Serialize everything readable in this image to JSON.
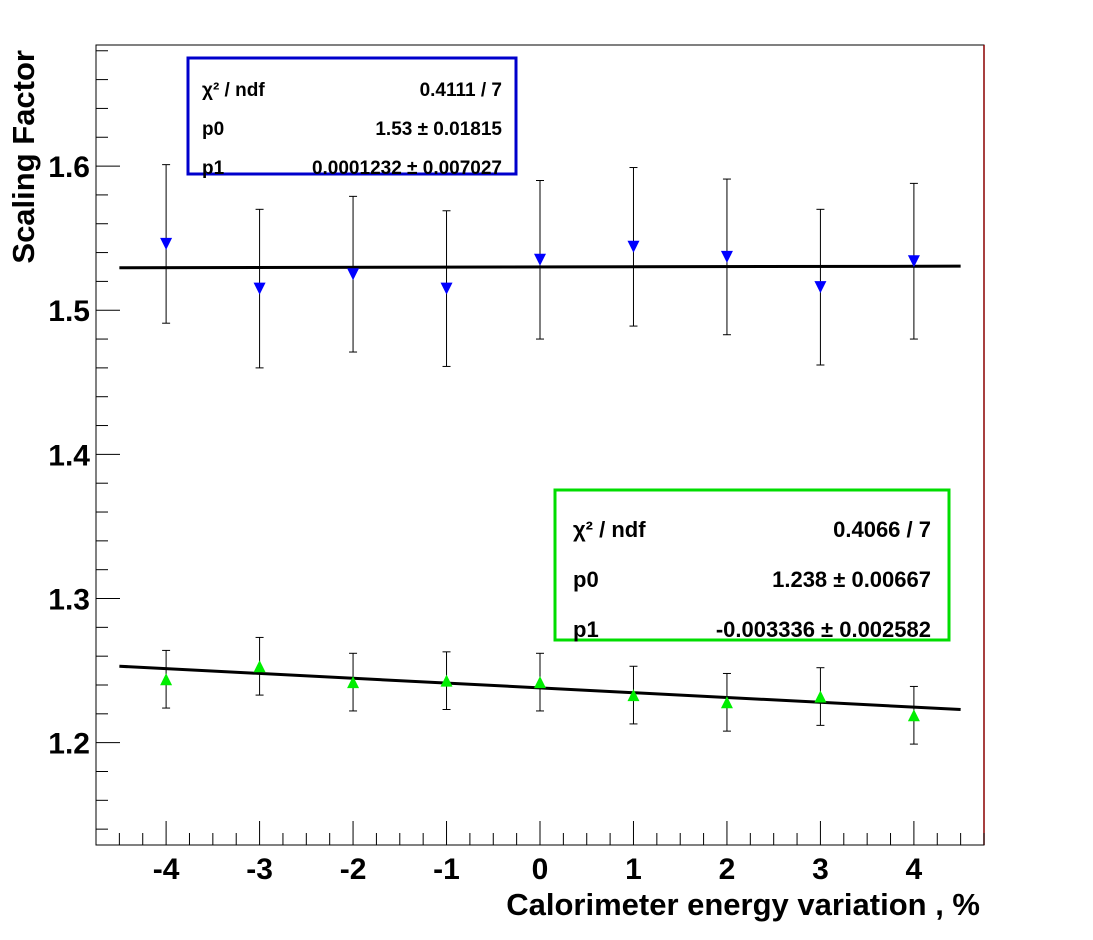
{
  "chart_data": {
    "type": "scatter",
    "title": "",
    "xlabel": "Calorimeter energy variation , %",
    "ylabel": "Scaling Factor",
    "xlim": [
      -4.75,
      4.75
    ],
    "ylim": [
      1.129,
      1.684
    ],
    "x_ticks": [
      -4,
      -3,
      -2,
      -1,
      0,
      1,
      2,
      3,
      4
    ],
    "x_tick_labels": [
      "-4",
      "-3",
      "-2",
      "-1",
      "0",
      "1",
      "2",
      "3",
      "4"
    ],
    "y_ticks": [
      1.2,
      1.3,
      1.4,
      1.5,
      1.6
    ],
    "y_tick_labels": [
      "1.2",
      "1.3",
      "1.4",
      "1.5",
      "1.6"
    ],
    "grid": false,
    "series": [
      {
        "color": "#0000ff",
        "marker": "triangle-down",
        "x": [
          -4,
          -3,
          -2,
          -1,
          0,
          1,
          2,
          3,
          4
        ],
        "y": [
          1.546,
          1.515,
          1.525,
          1.515,
          1.535,
          1.544,
          1.537,
          1.516,
          1.534
        ],
        "err": [
          0.055,
          0.055,
          0.054,
          0.054,
          0.055,
          0.055,
          0.054,
          0.054,
          0.054
        ],
        "fit": {
          "p0": 1.53,
          "p1": 0.0001232,
          "x_range": [
            -4.5,
            4.5
          ]
        },
        "stats": {
          "border_color": "#0000cc",
          "rows": [
            {
              "label": "χ² / ndf",
              "value": "0.4111 / 7"
            },
            {
              "label": "p0",
              "value": "1.53 ± 0.01815"
            },
            {
              "label": "p1",
              "value": "0.0001232 ± 0.007027"
            }
          ]
        }
      },
      {
        "color": "#00ee00",
        "marker": "triangle-up",
        "x": [
          -4,
          -3,
          -2,
          -1,
          0,
          1,
          2,
          3,
          4
        ],
        "y": [
          1.244,
          1.253,
          1.242,
          1.243,
          1.242,
          1.233,
          1.228,
          1.232,
          1.219
        ],
        "err": [
          0.02,
          0.02,
          0.02,
          0.02,
          0.02,
          0.02,
          0.02,
          0.02,
          0.02
        ],
        "fit": {
          "p0": 1.238,
          "p1": -0.003336,
          "x_range": [
            -4.5,
            4.5
          ]
        },
        "stats": {
          "border_color": "#00dd00",
          "rows": [
            {
              "label": "χ² / ndf",
              "value": "0.4066 / 7"
            },
            {
              "label": "p0",
              "value": "1.238 ± 0.00667"
            },
            {
              "label": "p1",
              "value": "-0.003336 ± 0.002582"
            }
          ]
        }
      }
    ]
  }
}
